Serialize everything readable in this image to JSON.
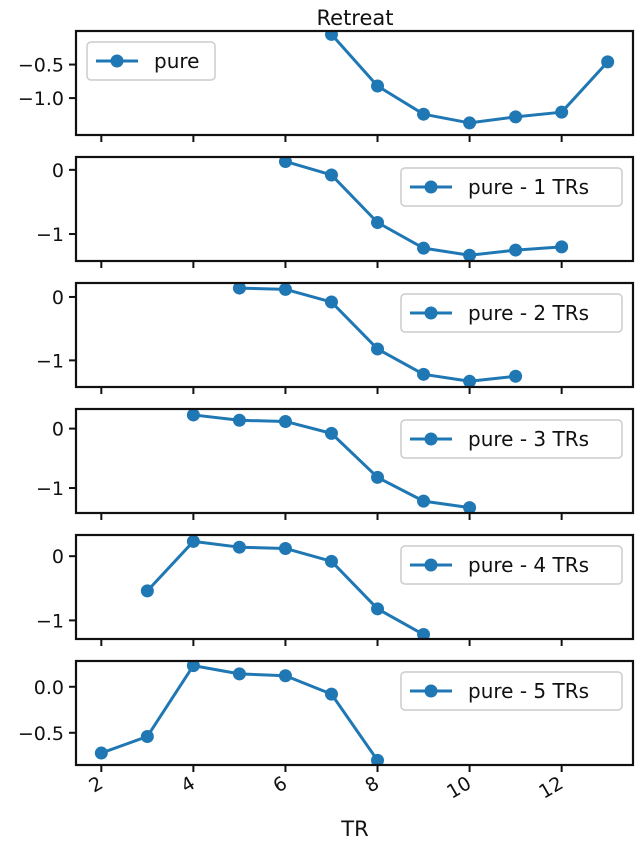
{
  "figure": {
    "title": "Retreat",
    "xlabel": "TR",
    "x_ticks": [
      "2",
      "4",
      "6",
      "8",
      "10",
      "12"
    ],
    "x_tick_values": [
      2,
      4,
      6,
      8,
      10,
      12
    ],
    "xlim": [
      1.45,
      13.55
    ],
    "line_color": "#1f77b4"
  },
  "chart_data": [
    {
      "type": "line",
      "series": [
        {
          "name": "pure",
          "x": [
            7,
            8,
            9,
            10,
            11,
            12,
            13
          ],
          "values": [
            -0.05,
            -0.82,
            -1.24,
            -1.37,
            -1.28,
            -1.21,
            -0.46
          ]
        }
      ],
      "ylim": [
        -1.55,
        0.0
      ],
      "y_ticks": [
        -0.5,
        -1.0
      ],
      "y_tick_labels": [
        "−0.5",
        "−1.0"
      ],
      "legend": "upper-left"
    },
    {
      "type": "line",
      "series": [
        {
          "name": "pure - 1 TRs",
          "x": [
            6,
            7,
            8,
            9,
            10,
            11,
            12
          ],
          "values": [
            0.13,
            -0.08,
            -0.82,
            -1.22,
            -1.33,
            -1.25,
            -1.2
          ]
        }
      ],
      "ylim": [
        -1.42,
        0.2
      ],
      "y_ticks": [
        0,
        -1
      ],
      "y_tick_labels": [
        "0",
        "−1"
      ],
      "legend": "upper-right"
    },
    {
      "type": "line",
      "series": [
        {
          "name": "pure - 2 TRs",
          "x": [
            5,
            6,
            7,
            8,
            9,
            10,
            11
          ],
          "values": [
            0.14,
            0.12,
            -0.08,
            -0.82,
            -1.22,
            -1.33,
            -1.25
          ]
        }
      ],
      "ylim": [
        -1.42,
        0.22
      ],
      "y_ticks": [
        0,
        -1
      ],
      "y_tick_labels": [
        "0",
        "−1"
      ],
      "legend": "upper-right"
    },
    {
      "type": "line",
      "series": [
        {
          "name": "pure - 3 TRs",
          "x": [
            4,
            5,
            6,
            7,
            8,
            9,
            10
          ],
          "values": [
            0.23,
            0.14,
            0.12,
            -0.08,
            -0.82,
            -1.22,
            -1.33
          ]
        }
      ],
      "ylim": [
        -1.42,
        0.33
      ],
      "y_ticks": [
        0,
        -1
      ],
      "y_tick_labels": [
        "0",
        "−1"
      ],
      "legend": "upper-right"
    },
    {
      "type": "line",
      "series": [
        {
          "name": "pure - 4 TRs",
          "x": [
            3,
            4,
            5,
            6,
            7,
            8,
            9
          ],
          "values": [
            -0.54,
            0.23,
            0.14,
            0.12,
            -0.08,
            -0.82,
            -1.22
          ]
        }
      ],
      "ylim": [
        -1.29,
        0.33
      ],
      "y_ticks": [
        0,
        -1
      ],
      "y_tick_labels": [
        "0",
        "−1"
      ],
      "legend": "upper-right"
    },
    {
      "type": "line",
      "series": [
        {
          "name": "pure - 5 TRs",
          "x": [
            2,
            3,
            4,
            5,
            6,
            7,
            8
          ],
          "values": [
            -0.72,
            -0.54,
            0.23,
            0.14,
            0.12,
            -0.08,
            -0.8
          ]
        }
      ],
      "ylim": [
        -0.85,
        0.28
      ],
      "y_ticks": [
        0.0,
        -0.5
      ],
      "y_tick_labels": [
        "0.0",
        "−0.5"
      ],
      "legend": "upper-right"
    }
  ]
}
